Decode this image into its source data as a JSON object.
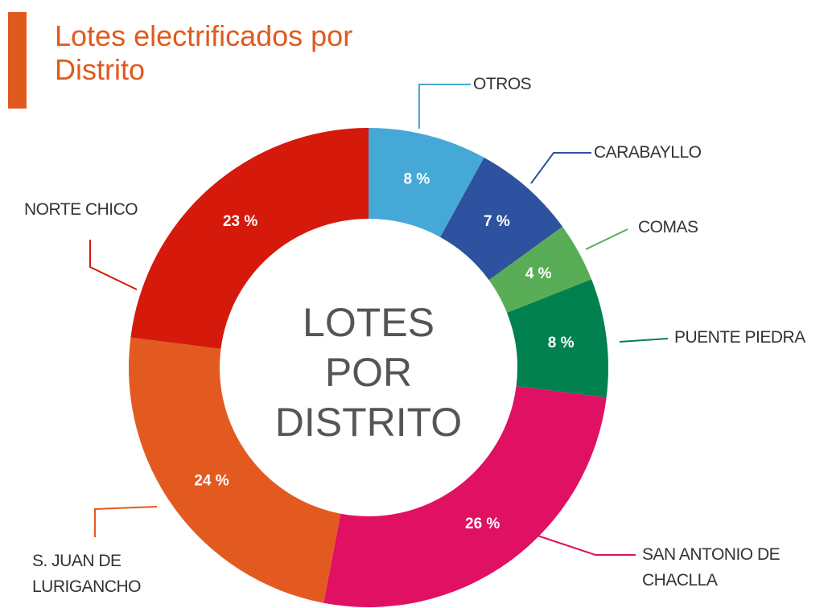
{
  "chart_data": {
    "type": "donut",
    "title": "Lotes electrificados por Distrito",
    "center_label": "LOTES POR DISTRITO",
    "categories": [
      "OTROS",
      "CARABAYLLO",
      "COMAS",
      "PUENTE PIEDRA",
      "SAN ANTONIO DE CHACLLA",
      "S. JUAN DE LURIGANCHO",
      "NORTE CHICO"
    ],
    "values": [
      8,
      7,
      4,
      8,
      26,
      24,
      23
    ],
    "value_labels": [
      "8 %",
      "7 %",
      "4 %",
      "8 %",
      "26 %",
      "24 %",
      "23 %"
    ],
    "colors": [
      "#46a8d6",
      "#2e529f",
      "#5aad57",
      "#00814f",
      "#e01063",
      "#e35a20",
      "#d51a0c"
    ]
  }
}
